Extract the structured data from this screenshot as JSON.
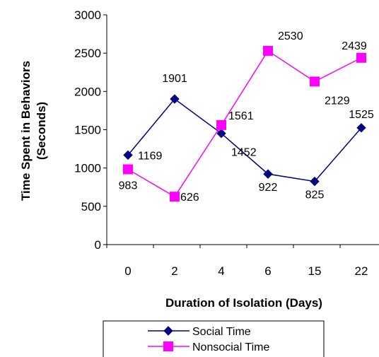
{
  "chart_data": {
    "type": "line",
    "categories": [
      "0",
      "2",
      "4",
      "6",
      "15",
      "22"
    ],
    "series": [
      {
        "name": "Social Time",
        "values": [
          1169,
          1901,
          1452,
          922,
          825,
          1525
        ],
        "labels": [
          "1169",
          "1901",
          "1452",
          "922",
          "825",
          "1525"
        ],
        "color": "#000080",
        "marker": "diamond"
      },
      {
        "name": "Nonsocial Time",
        "values": [
          983,
          626,
          1561,
          2530,
          2129,
          2439
        ],
        "labels": [
          "983",
          "626",
          "1561",
          "2530",
          "2129",
          "2439"
        ],
        "color": "#ff00ff",
        "marker": "square"
      }
    ],
    "yticks": [
      "0",
      "500",
      "1000",
      "1500",
      "2000",
      "2500",
      "3000"
    ],
    "ylim": [
      0,
      3000
    ],
    "xlabel": "Duration of Isolation (Days)",
    "ylabel_line1": "Time Spent in Behaviors",
    "ylabel_line2": "(Seconds)",
    "grid": false,
    "legend_position": "bottom"
  }
}
